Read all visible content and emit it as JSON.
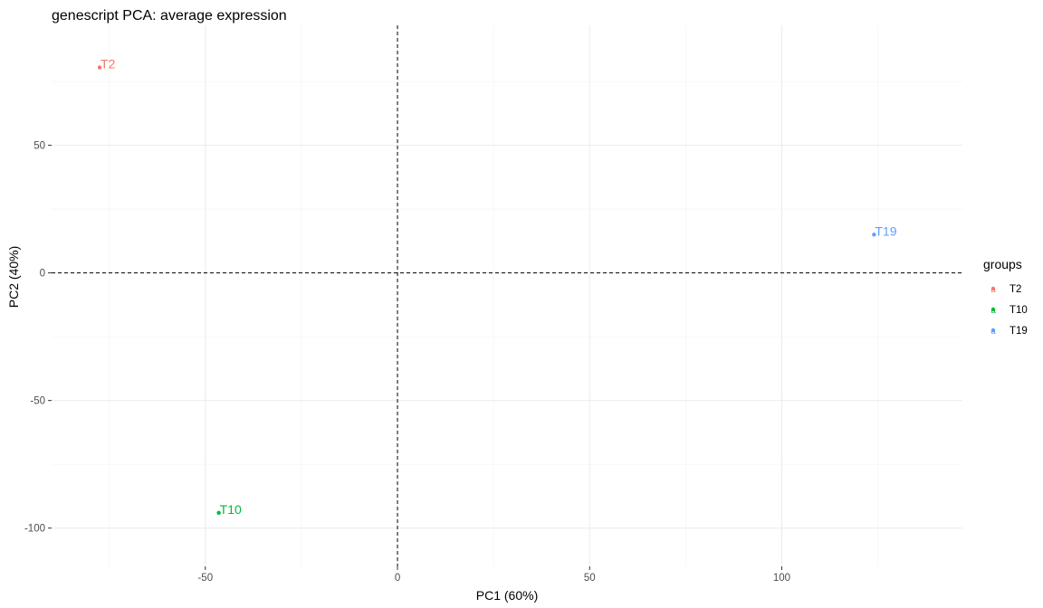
{
  "chart_data": {
    "type": "scatter",
    "title": "genescript PCA: average expression",
    "xlabel": "PC1 (60%)",
    "ylabel": "PC2 (40%)",
    "xlim": [
      -90,
      147
    ],
    "ylim": [
      -115,
      97
    ],
    "x_ticks": [
      -50,
      0,
      50,
      100
    ],
    "x_tick_labels": [
      "-50",
      "0",
      "50",
      "100"
    ],
    "x_minor_ticks": [
      -75,
      -25,
      25,
      75,
      125
    ],
    "y_ticks": [
      -100,
      -50,
      0,
      50
    ],
    "y_tick_labels": [
      "-100",
      "-50",
      "0",
      "50"
    ],
    "y_minor_ticks": [
      -75,
      -25,
      25,
      75
    ],
    "reference_lines": {
      "x": 0,
      "y": 0,
      "style": "dashed"
    },
    "grid": true,
    "legend": {
      "title": "groups",
      "position": "right"
    },
    "series": [
      {
        "name": "T2",
        "color": "#F8766D",
        "x": -77.5,
        "y": 80.5,
        "label": "T2"
      },
      {
        "name": "T10",
        "color": "#00BA38",
        "x": -46.5,
        "y": -94,
        "label": "T10"
      },
      {
        "name": "T19",
        "color": "#619CFF",
        "x": 124,
        "y": 15,
        "label": "T19"
      }
    ]
  }
}
